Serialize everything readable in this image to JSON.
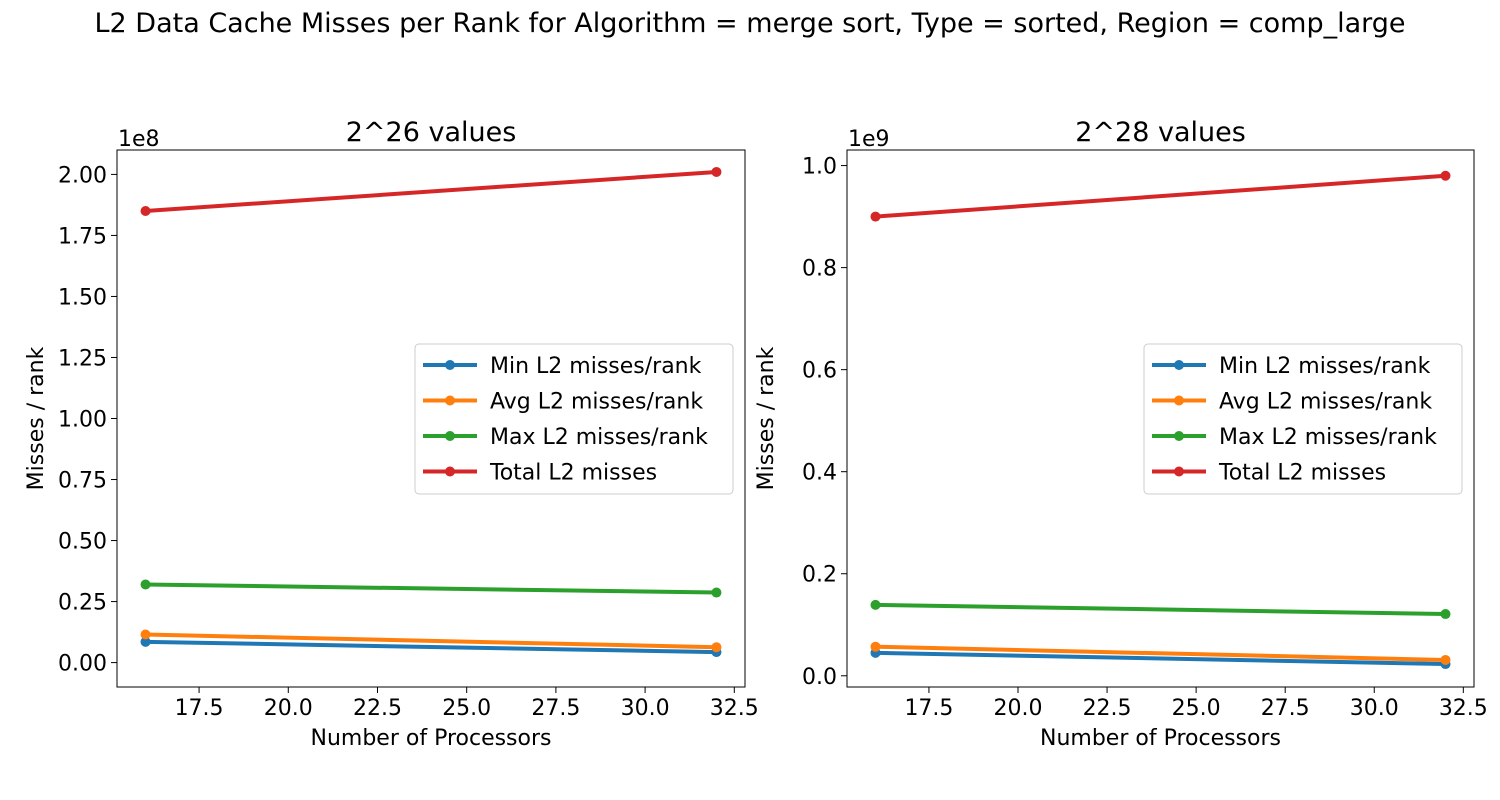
{
  "figure": {
    "title": "L2 Data Cache Misses per Rank for Algorithm = merge sort, Type = sorted, Region = comp_large"
  },
  "chart_data": [
    {
      "type": "line",
      "title": "2^26 values",
      "xlabel": "Number of Processors",
      "ylabel": "Misses / rank",
      "offset_text": "1e8",
      "x": [
        16,
        32
      ],
      "xlim": [
        15.2,
        32.8
      ],
      "ylim": [
        -0.1,
        2.1
      ],
      "xticks": [
        17.5,
        20.0,
        22.5,
        25.0,
        27.5,
        30.0,
        32.5
      ],
      "xtick_labels": [
        "17.5",
        "20.0",
        "22.5",
        "25.0",
        "27.5",
        "30.0",
        "32.5"
      ],
      "yticks": [
        0.0,
        0.25,
        0.5,
        0.75,
        1.0,
        1.25,
        1.5,
        1.75,
        2.0
      ],
      "ytick_labels": [
        "0.00",
        "0.25",
        "0.50",
        "0.75",
        "1.00",
        "1.25",
        "1.50",
        "1.75",
        "2.00"
      ],
      "legend_position": "center-right",
      "series": [
        {
          "name": "Min L2 misses/rank",
          "color": "#1f77b4",
          "values": [
            0.085,
            0.043
          ]
        },
        {
          "name": "Avg L2 misses/rank",
          "color": "#ff7f0e",
          "values": [
            0.115,
            0.063
          ]
        },
        {
          "name": "Max L2 misses/rank",
          "color": "#2ca02c",
          "values": [
            0.32,
            0.287
          ]
        },
        {
          "name": "Total L2 misses",
          "color": "#d62728",
          "values": [
            1.85,
            2.01
          ]
        }
      ]
    },
    {
      "type": "line",
      "title": "2^28 values",
      "xlabel": "Number of Processors",
      "ylabel": "Misses / rank",
      "offset_text": "1e9",
      "x": [
        16,
        32
      ],
      "xlim": [
        15.2,
        32.8
      ],
      "ylim": [
        -0.022,
        1.0305
      ],
      "xticks": [
        17.5,
        20.0,
        22.5,
        25.0,
        27.5,
        30.0,
        32.5
      ],
      "xtick_labels": [
        "17.5",
        "20.0",
        "22.5",
        "25.0",
        "27.5",
        "30.0",
        "32.5"
      ],
      "yticks": [
        0.0,
        0.2,
        0.4,
        0.6,
        0.8,
        1.0
      ],
      "ytick_labels": [
        "0.0",
        "0.2",
        "0.4",
        "0.6",
        "0.8",
        "1.0"
      ],
      "legend_position": "center-right",
      "series": [
        {
          "name": "Min L2 misses/rank",
          "color": "#1f77b4",
          "values": [
            0.045,
            0.023
          ]
        },
        {
          "name": "Avg L2 misses/rank",
          "color": "#ff7f0e",
          "values": [
            0.057,
            0.031
          ]
        },
        {
          "name": "Max L2 misses/rank",
          "color": "#2ca02c",
          "values": [
            0.139,
            0.121
          ]
        },
        {
          "name": "Total L2 misses",
          "color": "#d62728",
          "values": [
            0.9,
            0.98
          ]
        }
      ]
    }
  ]
}
